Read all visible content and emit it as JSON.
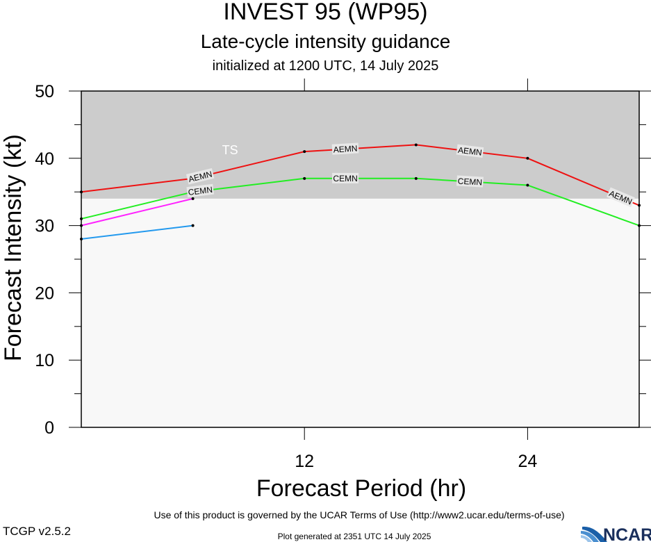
{
  "header": {
    "title": "INVEST 95 (WP95)",
    "subtitle": "Late-cycle intensity guidance",
    "initialized": "initialized at 1200 UTC, 14 July 2025"
  },
  "footer": {
    "terms": "Use of this product is governed by the UCAR Terms of Use (http://www2.ucar.edu/terms-of-use)",
    "version": "TCGP v2.5.2",
    "generated": "Plot generated at 2351 UTC   14 July 2025",
    "logo_text": "NCAR"
  },
  "chart_data": {
    "type": "line",
    "title": "INVEST 95 (WP95)",
    "xlabel": "Forecast Period (hr)",
    "ylabel": "Forecast Intensity (kt)",
    "xlim": [
      0,
      30
    ],
    "ylim": [
      0,
      50
    ],
    "x_ticks": [
      12,
      24
    ],
    "y_ticks": [
      0,
      10,
      20,
      30,
      40,
      50
    ],
    "grid": false,
    "band": {
      "label": "TS",
      "ymin": 34,
      "ymax": 50,
      "color": "#cccccc"
    },
    "plot_background": "#f8f8f8",
    "series": [
      {
        "name": "AEMN",
        "color": "#ee1111",
        "x": [
          0,
          6,
          12,
          18,
          24,
          30
        ],
        "y": [
          35,
          37,
          41,
          42,
          40,
          33
        ],
        "label_x": [
          6.4,
          14.2,
          20.9,
          29.0
        ]
      },
      {
        "name": "CEMN",
        "color": "#22ee22",
        "x": [
          0,
          6,
          12,
          18,
          24,
          30
        ],
        "y": [
          31,
          35,
          37,
          37,
          36,
          30
        ],
        "label_x": [
          6.4,
          14.2,
          20.9
        ]
      },
      {
        "name": "",
        "color": "#ff22ff",
        "x": [
          0,
          6
        ],
        "y": [
          30,
          34
        ],
        "label_x": []
      },
      {
        "name": "",
        "color": "#2299ee",
        "x": [
          0,
          6
        ],
        "y": [
          28,
          30
        ],
        "label_x": []
      }
    ]
  }
}
